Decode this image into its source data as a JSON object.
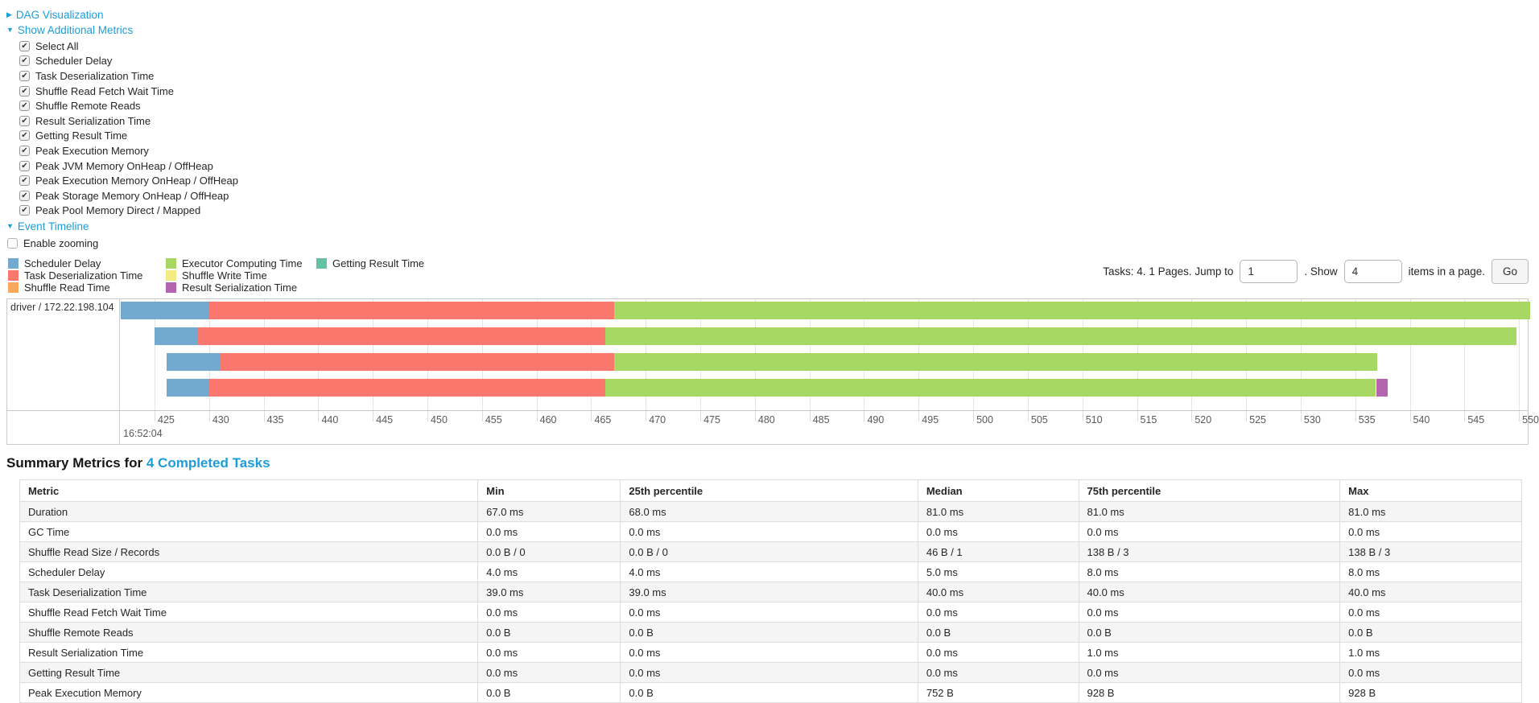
{
  "colors": {
    "link": "#1c9dd9",
    "scheduler_delay": "#72A9CF",
    "task_deserialization": "#F9776C",
    "shuffle_read": "#FAA85E",
    "executor_computing": "#A8D864",
    "shuffle_write": "#F2EC83",
    "getting_result": "#63C2A2",
    "result_serialization": "#B564AF"
  },
  "toggles": {
    "dag": "DAG Visualization",
    "additional_metrics": "Show Additional Metrics",
    "event_timeline": "Event Timeline"
  },
  "metric_checkboxes": [
    "Select All",
    "Scheduler Delay",
    "Task Deserialization Time",
    "Shuffle Read Fetch Wait Time",
    "Shuffle Remote Reads",
    "Result Serialization Time",
    "Getting Result Time",
    "Peak Execution Memory",
    "Peak JVM Memory OnHeap / OffHeap",
    "Peak Execution Memory OnHeap / OffHeap",
    "Peak Storage Memory OnHeap / OffHeap",
    "Peak Pool Memory Direct / Mapped"
  ],
  "enable_zooming_label": "Enable zooming",
  "legend": {
    "columns": [
      [
        {
          "label": "Scheduler Delay",
          "color": "scheduler_delay"
        },
        {
          "label": "Task Deserialization Time",
          "color": "task_deserialization"
        },
        {
          "label": "Shuffle Read Time",
          "color": "shuffle_read"
        }
      ],
      [
        {
          "label": "Executor Computing Time",
          "color": "executor_computing"
        },
        {
          "label": "Shuffle Write Time",
          "color": "shuffle_write"
        },
        {
          "label": "Result Serialization Time",
          "color": "result_serialization"
        }
      ],
      [
        {
          "label": "Getting Result Time",
          "color": "getting_result"
        }
      ]
    ]
  },
  "pagination": {
    "prefix": "Tasks: 4. 1 Pages. Jump to",
    "jump_value": "1",
    "mid": ". Show",
    "show_value": "4",
    "suffix": "items in a page.",
    "go_label": "Go"
  },
  "timeline": {
    "row_label": "driver / 172.22.198.104",
    "major_tick_label": "16:52:04",
    "window_start": 421.9,
    "window_end": 550.8,
    "ticks": [
      425,
      430,
      435,
      440,
      445,
      450,
      455,
      460,
      465,
      470,
      475,
      480,
      485,
      490,
      495,
      500,
      505,
      510,
      515,
      520,
      525,
      530,
      535,
      540,
      545,
      550
    ],
    "tasks": [
      {
        "segments": [
          {
            "color": "scheduler_delay",
            "start": 421.9,
            "end": 430.0
          },
          {
            "color": "task_deserialization",
            "start": 430.0,
            "end": 467.1
          },
          {
            "color": "executor_computing",
            "start": 467.1,
            "end": 551.0
          }
        ]
      },
      {
        "segments": [
          {
            "color": "scheduler_delay",
            "start": 425.0,
            "end": 429.0
          },
          {
            "color": "task_deserialization",
            "start": 429.0,
            "end": 466.3
          },
          {
            "color": "executor_computing",
            "start": 466.3,
            "end": 549.8
          }
        ]
      },
      {
        "segments": [
          {
            "color": "scheduler_delay",
            "start": 426.1,
            "end": 431.0
          },
          {
            "color": "task_deserialization",
            "start": 431.0,
            "end": 467.1
          },
          {
            "color": "executor_computing",
            "start": 467.1,
            "end": 537.0
          }
        ]
      },
      {
        "segments": [
          {
            "color": "scheduler_delay",
            "start": 426.1,
            "end": 430.0
          },
          {
            "color": "task_deserialization",
            "start": 430.0,
            "end": 466.3
          },
          {
            "color": "executor_computing",
            "start": 466.3,
            "end": 536.9
          },
          {
            "color": "result_serialization",
            "start": 536.9,
            "end": 538.0
          }
        ]
      }
    ]
  },
  "summary": {
    "title": "Summary Metrics for",
    "title_link": "4 Completed Tasks",
    "columns": [
      "Metric",
      "Min",
      "25th percentile",
      "Median",
      "75th percentile",
      "Max"
    ],
    "rows": [
      {
        "metric": "Duration",
        "values": [
          "67.0 ms",
          "68.0 ms",
          "81.0 ms",
          "81.0 ms",
          "81.0 ms"
        ]
      },
      {
        "metric": "GC Time",
        "values": [
          "0.0 ms",
          "0.0 ms",
          "0.0 ms",
          "0.0 ms",
          "0.0 ms"
        ]
      },
      {
        "metric": "Shuffle Read Size / Records",
        "values": [
          "0.0 B / 0",
          "0.0 B / 0",
          "46 B / 1",
          "138 B / 3",
          "138 B / 3"
        ]
      },
      {
        "metric": "Scheduler Delay",
        "values": [
          "4.0 ms",
          "4.0 ms",
          "5.0 ms",
          "8.0 ms",
          "8.0 ms"
        ]
      },
      {
        "metric": "Task Deserialization Time",
        "values": [
          "39.0 ms",
          "39.0 ms",
          "40.0 ms",
          "40.0 ms",
          "40.0 ms"
        ]
      },
      {
        "metric": "Shuffle Read Fetch Wait Time",
        "values": [
          "0.0 ms",
          "0.0 ms",
          "0.0 ms",
          "0.0 ms",
          "0.0 ms"
        ]
      },
      {
        "metric": "Shuffle Remote Reads",
        "values": [
          "0.0 B",
          "0.0 B",
          "0.0 B",
          "0.0 B",
          "0.0 B"
        ]
      },
      {
        "metric": "Result Serialization Time",
        "values": [
          "0.0 ms",
          "0.0 ms",
          "0.0 ms",
          "1.0 ms",
          "1.0 ms"
        ]
      },
      {
        "metric": "Getting Result Time",
        "values": [
          "0.0 ms",
          "0.0 ms",
          "0.0 ms",
          "0.0 ms",
          "0.0 ms"
        ]
      },
      {
        "metric": "Peak Execution Memory",
        "values": [
          "0.0 B",
          "0.0 B",
          "752 B",
          "928 B",
          "928 B"
        ]
      }
    ]
  }
}
